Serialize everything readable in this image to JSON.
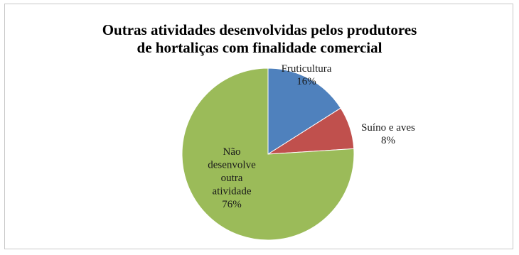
{
  "chart_data": {
    "type": "pie",
    "title_lines": [
      "Outras atividades desenvolvidas pelos produtores",
      "de hortaliças com finalidade comercial"
    ],
    "slices": [
      {
        "label_lines": [
          "Fruticultura"
        ],
        "value": 16,
        "value_text": "16%",
        "color": "#4f81bd"
      },
      {
        "label_lines": [
          "Suíno e aves"
        ],
        "value": 8,
        "value_text": "8%",
        "color": "#c0504d"
      },
      {
        "label_lines": [
          "Não",
          "desenvolve",
          "outra",
          "atividade"
        ],
        "value": 76,
        "value_text": "76%",
        "color": "#9bbb59"
      }
    ]
  }
}
